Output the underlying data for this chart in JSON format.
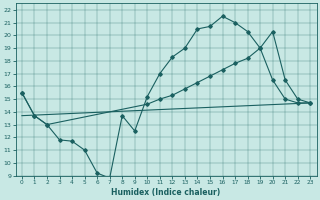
{
  "xlabel": "Humidex (Indice chaleur)",
  "xlim": [
    -0.5,
    23.5
  ],
  "ylim": [
    9,
    22.5
  ],
  "yticks": [
    9,
    10,
    11,
    12,
    13,
    14,
    15,
    16,
    17,
    18,
    19,
    20,
    21,
    22
  ],
  "xticks": [
    0,
    1,
    2,
    3,
    4,
    5,
    6,
    7,
    8,
    9,
    10,
    11,
    12,
    13,
    14,
    15,
    16,
    17,
    18,
    19,
    20,
    21,
    22,
    23
  ],
  "bg_color": "#c8e8e4",
  "line_color": "#1a6060",
  "line1_x": [
    0,
    1,
    2,
    3,
    4,
    5,
    6,
    7,
    8,
    9,
    10,
    11,
    12,
    13,
    14,
    15,
    16,
    17,
    18,
    19,
    20,
    21,
    22,
    23
  ],
  "line1_y": [
    15.5,
    13.7,
    13.0,
    11.8,
    11.7,
    11.0,
    9.2,
    8.8,
    13.7,
    12.5,
    15.2,
    17.0,
    18.3,
    19.0,
    20.5,
    20.7,
    21.5,
    21.0,
    20.3,
    19.0,
    16.5,
    15.0,
    14.7,
    14.7
  ],
  "line2_x": [
    0,
    23
  ],
  "line2_y": [
    13.7,
    14.7
  ],
  "line3_x": [
    0,
    1,
    2,
    10,
    11,
    12,
    13,
    14,
    15,
    16,
    17,
    18,
    19,
    20,
    21,
    22,
    23
  ],
  "line3_y": [
    15.5,
    13.7,
    13.0,
    14.6,
    15.0,
    15.3,
    15.8,
    16.3,
    16.8,
    17.3,
    17.8,
    18.2,
    19.0,
    20.3,
    16.5,
    15.0,
    14.7
  ],
  "figwidth": 3.2,
  "figheight": 2.0,
  "dpi": 100
}
